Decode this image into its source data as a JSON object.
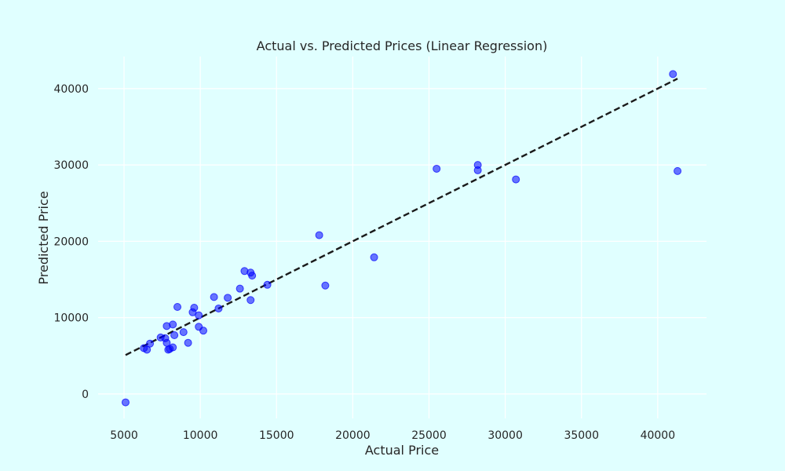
{
  "chart_data": {
    "type": "scatter",
    "title": "Actual vs. Predicted Prices (Linear Regression)",
    "xlabel": "Actual Price",
    "ylabel": "Predicted Price",
    "xlim": [
      3300,
      43200
    ],
    "ylim": [
      -3200,
      44200
    ],
    "xticks": [
      5000,
      10000,
      15000,
      20000,
      25000,
      30000,
      35000,
      40000
    ],
    "yticks": [
      0,
      10000,
      20000,
      30000,
      40000
    ],
    "grid": true,
    "point_color": "#0000ff",
    "background": "#e0ffff",
    "reference_line": {
      "style": "dashed",
      "color": "#1a1a1a",
      "x": [
        5100,
        41300
      ],
      "y": [
        5100,
        41300
      ]
    },
    "points": [
      {
        "x": 5100,
        "y": -1100
      },
      {
        "x": 6300,
        "y": 6000
      },
      {
        "x": 6500,
        "y": 5800
      },
      {
        "x": 6700,
        "y": 6600
      },
      {
        "x": 7400,
        "y": 7400
      },
      {
        "x": 7700,
        "y": 7300
      },
      {
        "x": 7800,
        "y": 8900
      },
      {
        "x": 7800,
        "y": 6700
      },
      {
        "x": 7900,
        "y": 5800
      },
      {
        "x": 8000,
        "y": 5900
      },
      {
        "x": 8200,
        "y": 6100
      },
      {
        "x": 8200,
        "y": 9100
      },
      {
        "x": 8300,
        "y": 7700
      },
      {
        "x": 8500,
        "y": 11400
      },
      {
        "x": 8900,
        "y": 8100
      },
      {
        "x": 9200,
        "y": 6700
      },
      {
        "x": 9500,
        "y": 10700
      },
      {
        "x": 9600,
        "y": 11300
      },
      {
        "x": 9900,
        "y": 10300
      },
      {
        "x": 9900,
        "y": 8800
      },
      {
        "x": 10200,
        "y": 8300
      },
      {
        "x": 10900,
        "y": 12700
      },
      {
        "x": 11200,
        "y": 11200
      },
      {
        "x": 11800,
        "y": 12600
      },
      {
        "x": 12600,
        "y": 13800
      },
      {
        "x": 12900,
        "y": 16100
      },
      {
        "x": 13300,
        "y": 12300
      },
      {
        "x": 13300,
        "y": 15900
      },
      {
        "x": 13400,
        "y": 15500
      },
      {
        "x": 14400,
        "y": 14300
      },
      {
        "x": 17800,
        "y": 20800
      },
      {
        "x": 18200,
        "y": 14200
      },
      {
        "x": 21400,
        "y": 17900
      },
      {
        "x": 25500,
        "y": 29500
      },
      {
        "x": 28200,
        "y": 29300
      },
      {
        "x": 28200,
        "y": 30000
      },
      {
        "x": 30700,
        "y": 28100
      },
      {
        "x": 41000,
        "y": 41900
      },
      {
        "x": 41300,
        "y": 29200
      }
    ]
  }
}
